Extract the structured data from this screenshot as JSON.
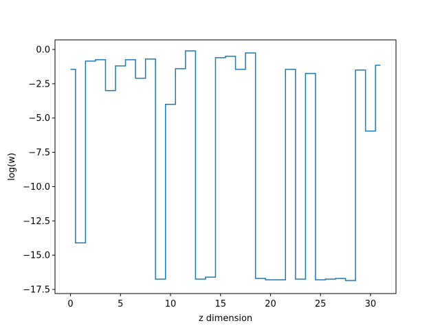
{
  "chart_data": {
    "type": "line",
    "step": "mid",
    "xlabel": "z dimension",
    "ylabel": "log(w)",
    "xlim": [
      -1.55,
      32.55
    ],
    "ylim": [
      -17.8,
      0.7
    ],
    "xticks": [
      0,
      5,
      10,
      15,
      20,
      25,
      30
    ],
    "xtick_labels": [
      "0",
      "5",
      "10",
      "15",
      "20",
      "25",
      "30"
    ],
    "yticks": [
      0.0,
      -2.5,
      -5.0,
      -7.5,
      -10.0,
      -12.5,
      -15.0,
      -17.5
    ],
    "ytick_labels": [
      "0.0",
      "−2.5",
      "−5.0",
      "−7.5",
      "−10.0",
      "−12.5",
      "−15.0",
      "−17.5"
    ],
    "line_color": "#1f77b4",
    "series": [
      {
        "x": [
          0,
          1,
          2,
          3,
          4,
          5,
          6,
          7,
          8,
          9,
          10,
          11,
          12,
          13,
          14,
          15,
          16,
          17,
          18,
          19,
          20,
          21,
          22,
          23,
          24,
          25,
          26,
          27,
          28,
          29,
          30,
          31
        ],
        "values": [
          -1.45,
          -14.1,
          -0.85,
          -0.75,
          -3.0,
          -1.2,
          -0.75,
          -2.1,
          -0.7,
          -16.75,
          -4.0,
          -1.4,
          -0.1,
          -16.75,
          -16.6,
          -0.6,
          -0.5,
          -1.45,
          -0.25,
          -16.7,
          -16.8,
          -16.8,
          -1.45,
          -16.75,
          -1.75,
          -16.8,
          -16.75,
          -16.7,
          -16.85,
          -1.5,
          -5.95,
          -1.15
        ]
      }
    ]
  }
}
